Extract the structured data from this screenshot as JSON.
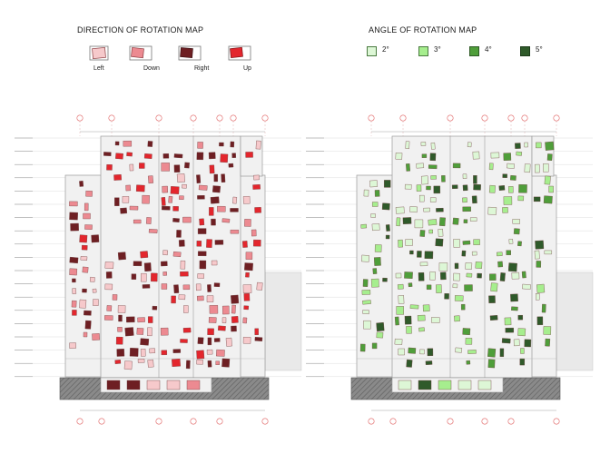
{
  "left_panel": {
    "title": "DIRECTION OF ROTATION MAP",
    "legend": [
      {
        "label": "Left",
        "color": "#f6c9cb"
      },
      {
        "label": "Down",
        "color": "#ec8a91"
      },
      {
        "label": "Right",
        "color": "#6e1f23"
      },
      {
        "label": "Up",
        "color": "#e3262d"
      }
    ]
  },
  "right_panel": {
    "title": "ANGLE OF ROTATION MAP",
    "legend": [
      {
        "label": "2°",
        "color": "#ddf7d6"
      },
      {
        "label": "3°",
        "color": "#a6ee8e"
      },
      {
        "label": "4°",
        "color": "#4f9e3a"
      },
      {
        "label": "5°",
        "color": "#2f5a2a"
      }
    ]
  },
  "drawing": {
    "grid_axis_labels": [
      "A",
      "B",
      "C",
      "D",
      "E",
      "F",
      "G"
    ],
    "bottom_axis_labels": [
      "A",
      "B",
      "C",
      "D",
      "E",
      "G"
    ],
    "facade_bg": "#f1f1f1",
    "outline": "#9a9a9a",
    "basement_fill": "#8a8a8a"
  }
}
